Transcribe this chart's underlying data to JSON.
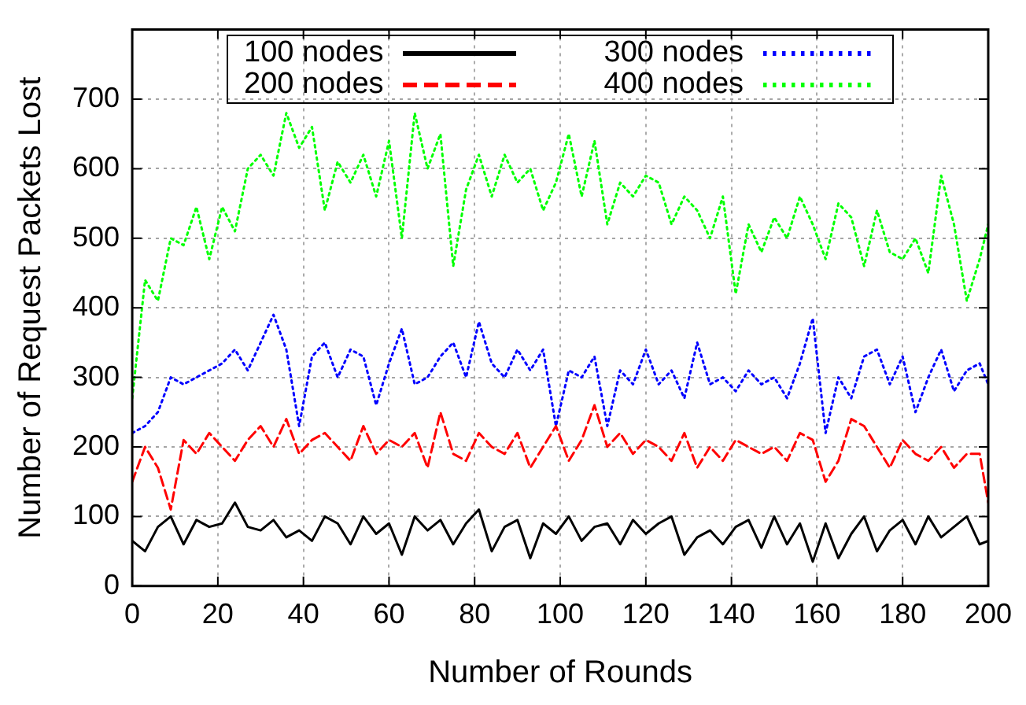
{
  "chart_data": {
    "type": "line",
    "xlabel": "Number of Rounds",
    "ylabel": "Number of Request Packets Lost",
    "x": [
      0,
      3,
      6,
      9,
      12,
      15,
      18,
      21,
      24,
      27,
      30,
      33,
      36,
      39,
      42,
      45,
      48,
      51,
      54,
      57,
      60,
      63,
      66,
      69,
      72,
      75,
      78,
      81,
      84,
      87,
      90,
      93,
      96,
      99,
      102,
      105,
      108,
      111,
      114,
      117,
      120,
      123,
      126,
      129,
      132,
      135,
      138,
      141,
      144,
      147,
      150,
      153,
      156,
      159,
      162,
      165,
      168,
      171,
      174,
      177,
      180,
      183,
      186,
      189,
      192,
      195,
      198,
      200
    ],
    "xlim": [
      0,
      200
    ],
    "xticks": [
      0,
      20,
      40,
      60,
      80,
      100,
      120,
      140,
      160,
      180,
      200
    ],
    "ylim": [
      0,
      800
    ],
    "yticks": [
      0,
      100,
      200,
      300,
      400,
      500,
      600,
      700
    ],
    "grid": true,
    "legend": "top",
    "marker": "none",
    "series": [
      {
        "name": "100 nodes",
        "color": "#000000",
        "line_style": "solid",
        "values": [
          65,
          50,
          85,
          100,
          60,
          95,
          85,
          90,
          120,
          85,
          80,
          95,
          70,
          80,
          65,
          100,
          90,
          60,
          100,
          75,
          90,
          45,
          100,
          80,
          95,
          60,
          90,
          110,
          50,
          85,
          95,
          40,
          90,
          75,
          100,
          65,
          85,
          90,
          60,
          95,
          75,
          90,
          100,
          45,
          70,
          80,
          60,
          85,
          95,
          55,
          100,
          60,
          90,
          35,
          90,
          40,
          75,
          100,
          50,
          80,
          95,
          60,
          100,
          70,
          85,
          100,
          60,
          65
        ]
      },
      {
        "name": "200 nodes",
        "color": "#ff0000",
        "line_style": "dashed",
        "values": [
          150,
          200,
          170,
          110,
          210,
          190,
          220,
          200,
          180,
          210,
          230,
          200,
          240,
          190,
          210,
          220,
          200,
          180,
          230,
          190,
          210,
          200,
          220,
          170,
          250,
          190,
          180,
          220,
          200,
          190,
          220,
          170,
          200,
          230,
          180,
          210,
          260,
          200,
          220,
          190,
          210,
          200,
          180,
          220,
          170,
          200,
          180,
          210,
          200,
          190,
          200,
          180,
          220,
          210,
          150,
          180,
          240,
          230,
          200,
          170,
          210,
          190,
          180,
          200,
          170,
          190,
          190,
          120
        ]
      },
      {
        "name": "300 nodes",
        "color": "#0000ff",
        "line_style": "dotted",
        "values": [
          220,
          230,
          250,
          300,
          290,
          300,
          310,
          320,
          340,
          310,
          350,
          390,
          340,
          230,
          330,
          350,
          300,
          340,
          330,
          260,
          320,
          370,
          290,
          300,
          330,
          350,
          300,
          380,
          320,
          300,
          340,
          310,
          340,
          230,
          310,
          300,
          330,
          230,
          310,
          290,
          340,
          290,
          310,
          270,
          350,
          290,
          300,
          280,
          310,
          290,
          300,
          270,
          320,
          385,
          220,
          300,
          270,
          330,
          340,
          290,
          330,
          250,
          300,
          340,
          280,
          310,
          320,
          290
        ]
      },
      {
        "name": "400 nodes",
        "color": "#00ff00",
        "line_style": "dotted",
        "values": [
          270,
          440,
          410,
          500,
          490,
          545,
          470,
          545,
          510,
          600,
          620,
          590,
          680,
          630,
          660,
          540,
          610,
          580,
          620,
          560,
          640,
          500,
          680,
          600,
          650,
          460,
          570,
          620,
          560,
          620,
          580,
          600,
          540,
          580,
          650,
          560,
          640,
          520,
          580,
          560,
          590,
          580,
          520,
          560,
          540,
          500,
          560,
          420,
          520,
          480,
          530,
          500,
          560,
          520,
          470,
          550,
          530,
          460,
          540,
          480,
          470,
          500,
          450,
          590,
          520,
          410,
          470,
          520
        ]
      }
    ]
  }
}
